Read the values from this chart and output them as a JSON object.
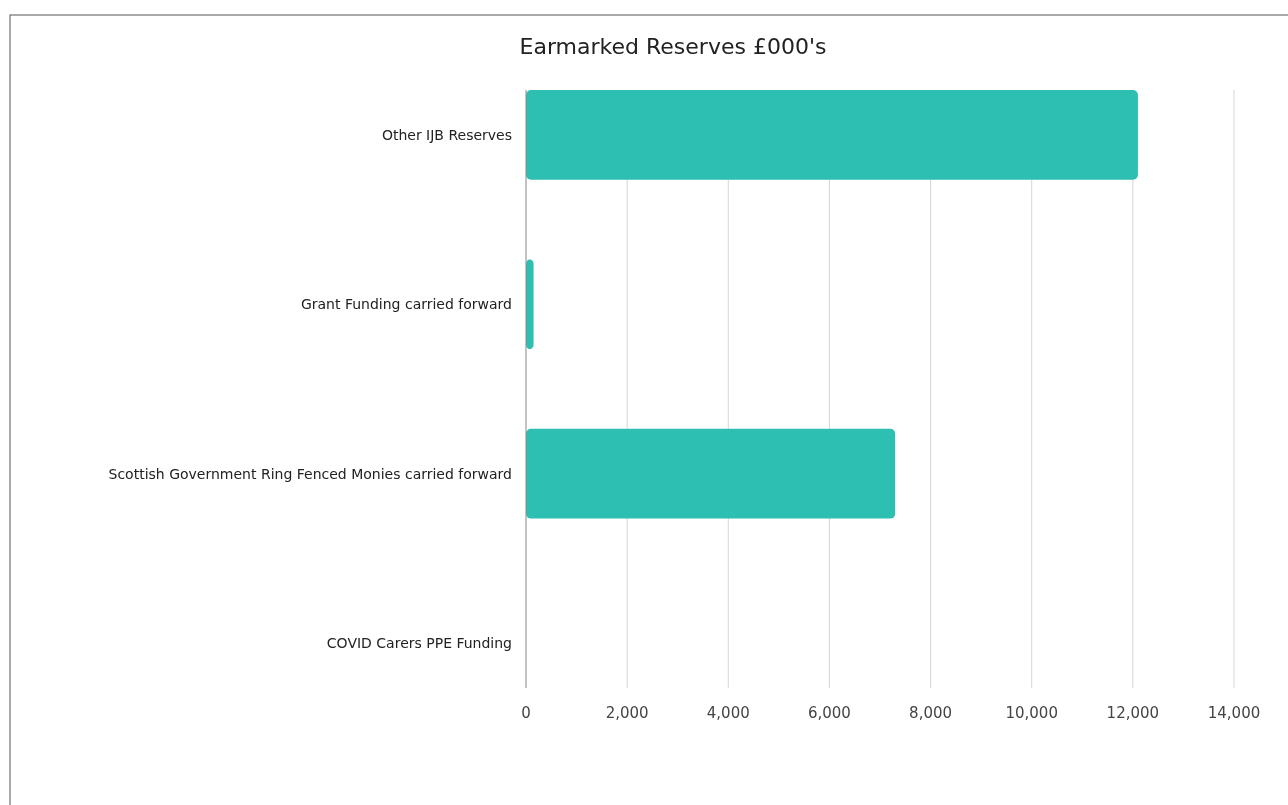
{
  "chart_data": {
    "type": "bar",
    "orientation": "horizontal",
    "title": "Earmarked Reserves £000's",
    "categories": [
      "Other IJB Reserves",
      "Grant Funding carried forward",
      "Scottish Government Ring Fenced Monies carried forward",
      "COVID Carers PPE Funding"
    ],
    "values": [
      12100,
      150,
      7300,
      0
    ],
    "color": "#2ebfb3",
    "xlim": [
      0,
      14000
    ],
    "xticks": [
      {
        "value": 0,
        "label": "0"
      },
      {
        "value": 2000,
        "label": "2,000"
      },
      {
        "value": 4000,
        "label": "4,000"
      },
      {
        "value": 6000,
        "label": "6,000"
      },
      {
        "value": 8000,
        "label": "8,000"
      },
      {
        "value": 10000,
        "label": "10,000"
      },
      {
        "value": 12000,
        "label": "12,000"
      },
      {
        "value": 14000,
        "label": "14,000"
      }
    ],
    "grid": "x"
  }
}
